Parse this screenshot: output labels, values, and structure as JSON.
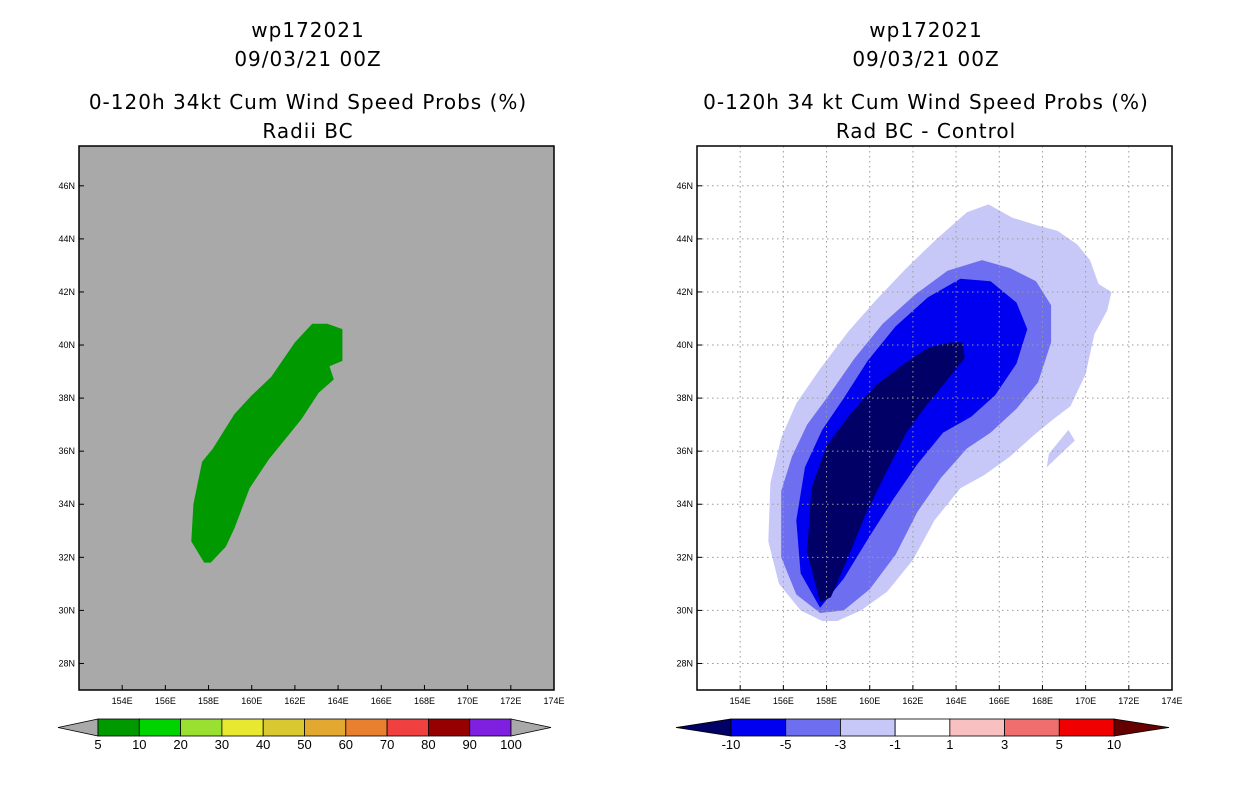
{
  "chart_data": [
    {
      "type": "heatmap",
      "storm_id": "wp172021",
      "date": "09/03/21 00Z",
      "title": "0-120h 34kt Cum Wind Speed Probs (%)",
      "subtitle": "Radii BC",
      "xlim": [
        152,
        174
      ],
      "ylim": [
        27,
        47.5
      ],
      "xticks": [
        "154E",
        "156E",
        "158E",
        "160E",
        "162E",
        "164E",
        "166E",
        "168E",
        "170E",
        "172E",
        "174E"
      ],
      "yticks": [
        "28N",
        "30N",
        "32N",
        "34N",
        "36N",
        "38N",
        "40N",
        "42N",
        "44N",
        "46N"
      ],
      "xtick_values": [
        154,
        156,
        158,
        160,
        162,
        164,
        166,
        168,
        170,
        172,
        174
      ],
      "ytick_values": [
        28,
        30,
        32,
        34,
        36,
        38,
        40,
        42,
        44,
        46
      ],
      "grid": false,
      "background": "#a9a9a9",
      "colorbar": {
        "labels": [
          "5",
          "10",
          "20",
          "30",
          "40",
          "50",
          "60",
          "70",
          "80",
          "90",
          "100"
        ],
        "colors": [
          "#009900",
          "#00d400",
          "#99e030",
          "#e8e830",
          "#d9c830",
          "#e3a830",
          "#e88030",
          "#f04040",
          "#960000",
          "#7f1fdf"
        ],
        "end_color": "#a9a9a9"
      },
      "region_color": "#009900",
      "region_lonlat": [
        [
          157.8,
          31.8
        ],
        [
          157.2,
          32.6
        ],
        [
          157.3,
          34
        ],
        [
          157.7,
          35.6
        ],
        [
          158.2,
          36.1
        ],
        [
          159.2,
          37.4
        ],
        [
          160,
          38.1
        ],
        [
          160.9,
          38.8
        ],
        [
          162,
          40.1
        ],
        [
          162.8,
          40.8
        ],
        [
          163.5,
          40.8
        ],
        [
          164.2,
          40.6
        ],
        [
          164.2,
          39.4
        ],
        [
          163.6,
          39.2
        ],
        [
          163.8,
          38.7
        ],
        [
          163.1,
          38.2
        ],
        [
          162.3,
          37.2
        ],
        [
          161.6,
          36.5
        ],
        [
          160.8,
          35.7
        ],
        [
          159.9,
          34.6
        ],
        [
          159.2,
          33.1
        ],
        [
          158.8,
          32.4
        ],
        [
          158.1,
          31.8
        ]
      ]
    },
    {
      "type": "heatmap",
      "storm_id": "wp172021",
      "date": "09/03/21 00Z",
      "title": "0-120h 34 kt Cum Wind Speed Probs (%)",
      "subtitle": "Rad BC - Control",
      "xlim": [
        152,
        174
      ],
      "ylim": [
        27,
        47.5
      ],
      "xticks": [
        "154E",
        "156E",
        "158E",
        "160E",
        "162E",
        "164E",
        "166E",
        "168E",
        "170E",
        "172E",
        "174E"
      ],
      "yticks": [
        "28N",
        "30N",
        "32N",
        "34N",
        "36N",
        "38N",
        "40N",
        "42N",
        "44N",
        "46N"
      ],
      "xtick_values": [
        154,
        156,
        158,
        160,
        162,
        164,
        166,
        168,
        170,
        172,
        174
      ],
      "ytick_values": [
        28,
        30,
        32,
        34,
        36,
        38,
        40,
        42,
        44,
        46
      ],
      "grid": true,
      "background": "#ffffff",
      "colorbar": {
        "labels": [
          "-10",
          "-5",
          "-3",
          "-1",
          "1",
          "3",
          "5",
          "10"
        ],
        "colors": [
          "#0000f0",
          "#6e6ef0",
          "#c8c8f8",
          "#ffffff",
          "#f8c0c0",
          "#f06e6e",
          "#f00000"
        ],
        "start_color": "#000066",
        "end_color": "#660000"
      },
      "contours": [
        {
          "level": "-1 to -3",
          "color": "#c8c8f8",
          "lonlat": [
            [
              157.8,
              29.6
            ],
            [
              156.8,
              30
            ],
            [
              155.8,
              31
            ],
            [
              155.3,
              32.6
            ],
            [
              155.4,
              34.8
            ],
            [
              155.9,
              36.5
            ],
            [
              156.6,
              37.8
            ],
            [
              157.7,
              39.1
            ],
            [
              159,
              40.5
            ],
            [
              160.3,
              41.7
            ],
            [
              161.7,
              42.9
            ],
            [
              163.1,
              44
            ],
            [
              164.5,
              45
            ],
            [
              165.5,
              45.3
            ],
            [
              166.6,
              44.8
            ],
            [
              167.8,
              44.5
            ],
            [
              168.7,
              44.3
            ],
            [
              169.6,
              43.8
            ],
            [
              170.2,
              43.2
            ],
            [
              170.6,
              42.3
            ],
            [
              171.2,
              42
            ],
            [
              171,
              41.3
            ],
            [
              170.4,
              40.4
            ],
            [
              170,
              38.9
            ],
            [
              169.3,
              37.7
            ],
            [
              168.5,
              37.2
            ],
            [
              167.6,
              36.6
            ],
            [
              166.5,
              35.8
            ],
            [
              165.3,
              35.1
            ],
            [
              164.2,
              34.6
            ],
            [
              163,
              33.4
            ],
            [
              162,
              31.9
            ],
            [
              160.8,
              30.7
            ],
            [
              159.6,
              30
            ],
            [
              158.5,
              29.6
            ]
          ]
        },
        {
          "level": "-1 to -3",
          "color": "#c8c8f8",
          "lonlat": [
            [
              169.5,
              36.4
            ],
            [
              168.2,
              35.4
            ],
            [
              168.3,
              35.9
            ],
            [
              169.2,
              36.8
            ]
          ]
        },
        {
          "level": "-3 to -5",
          "color": "#6e6ef0",
          "lonlat": [
            [
              157.7,
              29.9
            ],
            [
              156.6,
              30.6
            ],
            [
              155.9,
              32
            ],
            [
              155.9,
              34.5
            ],
            [
              156.4,
              35.8
            ],
            [
              157.1,
              37
            ],
            [
              158.1,
              38.1
            ],
            [
              159.3,
              39.5
            ],
            [
              160.6,
              40.8
            ],
            [
              162.1,
              41.9
            ],
            [
              163.6,
              42.8
            ],
            [
              165.2,
              43.2
            ],
            [
              166.5,
              42.9
            ],
            [
              167.7,
              42.4
            ],
            [
              168.4,
              41.5
            ],
            [
              168.4,
              40.1
            ],
            [
              167.8,
              38.6
            ],
            [
              166.8,
              37.6
            ],
            [
              165.6,
              36.7
            ],
            [
              164.5,
              36.1
            ],
            [
              163.3,
              35
            ],
            [
              162.2,
              33.7
            ],
            [
              161.2,
              32.1
            ],
            [
              160,
              30.8
            ],
            [
              158.8,
              30
            ]
          ]
        },
        {
          "level": "-5 to -10",
          "color": "#0000f0",
          "lonlat": [
            [
              157.7,
              30.1
            ],
            [
              156.8,
              31.4
            ],
            [
              156.6,
              33.4
            ],
            [
              157,
              35.4
            ],
            [
              157.8,
              36.8
            ],
            [
              158.8,
              38
            ],
            [
              159.9,
              39.4
            ],
            [
              161.2,
              40.7
            ],
            [
              162.7,
              41.8
            ],
            [
              164.2,
              42.5
            ],
            [
              165.6,
              42.4
            ],
            [
              166.8,
              41.6
            ],
            [
              167.3,
              40.6
            ],
            [
              166.8,
              39.3
            ],
            [
              165.8,
              38.1
            ],
            [
              164.7,
              37.3
            ],
            [
              163.4,
              36.7
            ],
            [
              162.2,
              35.5
            ],
            [
              161.1,
              34.2
            ],
            [
              160,
              32.8
            ],
            [
              158.8,
              31.2
            ]
          ]
        },
        {
          "level": "< -10",
          "color": "#000066",
          "lonlat": [
            [
              157.7,
              30.3
            ],
            [
              157.1,
              32.2
            ],
            [
              157.3,
              34.6
            ],
            [
              158,
              36.2
            ],
            [
              159.1,
              37.4
            ],
            [
              160.3,
              38.5
            ],
            [
              161.6,
              39.3
            ],
            [
              162.7,
              39.9
            ],
            [
              163.7,
              40.1
            ],
            [
              164.3,
              40.1
            ],
            [
              164.4,
              39.5
            ],
            [
              163.5,
              38.6
            ],
            [
              162.6,
              37.7
            ],
            [
              161.7,
              36.7
            ],
            [
              160.7,
              35.1
            ],
            [
              159.8,
              33.6
            ],
            [
              159.1,
              32.2
            ],
            [
              158.2,
              30.5
            ]
          ]
        }
      ]
    }
  ]
}
